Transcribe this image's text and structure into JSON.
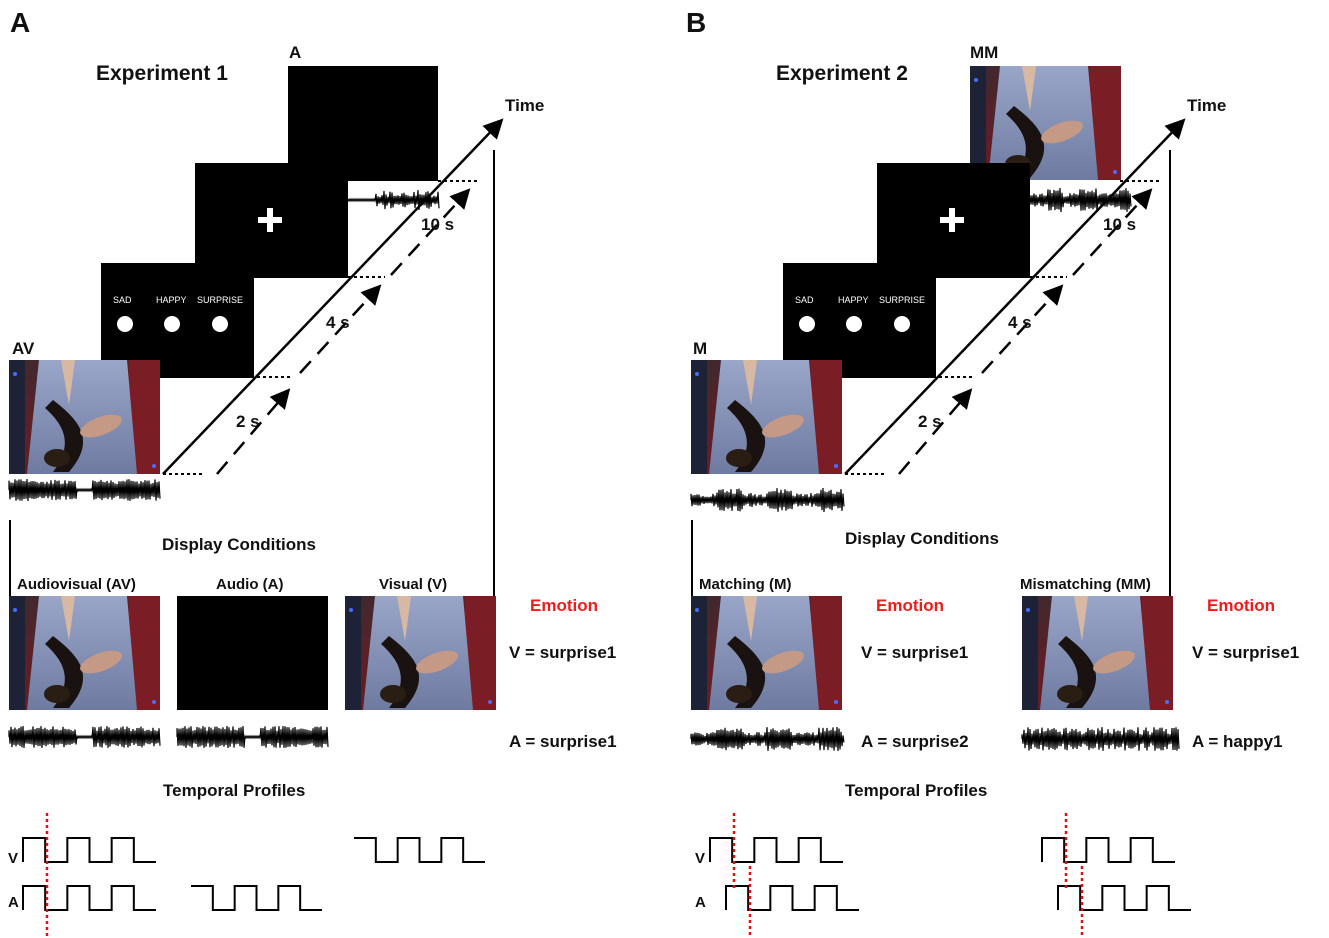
{
  "colors": {
    "emotion_text": "#ee1c1c",
    "screen": "#000000",
    "background": "#ffffff",
    "onset_marker": "#e01010"
  },
  "icon_names": [
    "fixation-cross-icon",
    "rating-dot-icon",
    "waveform-icon",
    "timeline-arrow-icon",
    "square-wave-icon"
  ],
  "panel_a": {
    "letter": "A",
    "experiment_title": "Experiment 1",
    "time_label": "Time",
    "audio_only_label": "A",
    "stimulus_label": "AV",
    "rating_choices": [
      "SAD",
      "HAPPY",
      "SURPRISE"
    ],
    "durations": [
      "2 s",
      "4 s",
      "10 s"
    ],
    "display_conditions_title": "Display Conditions",
    "conditions": [
      "Audiovisual (AV)",
      "Audio (A)",
      "Visual (V)"
    ],
    "emotion_heading": "Emotion",
    "visual_emotion": "V = surprise1",
    "audio_emotion": "A = surprise1",
    "temporal_profiles_title": "Temporal Profiles",
    "profile_labels": [
      "V",
      "A"
    ]
  },
  "panel_b": {
    "letter": "B",
    "experiment_title": "Experiment 2",
    "time_label": "Time",
    "mismatch_label": "MM",
    "stimulus_label": "M",
    "rating_choices": [
      "SAD",
      "HAPPY",
      "SURPRISE"
    ],
    "durations": [
      "2 s",
      "4 s",
      "10 s"
    ],
    "display_conditions_title": "Display Conditions",
    "conditions": [
      "Matching (M)",
      "Mismatching (MM)"
    ],
    "emotion_heading_1": "Emotion",
    "emotion_heading_2": "Emotion",
    "visual_emotion_1": "V = surprise1",
    "audio_emotion_1": "A = surprise2",
    "visual_emotion_2": "V = surprise1",
    "audio_emotion_2": "A = happy1",
    "temporal_profiles_title": "Temporal Profiles",
    "profile_labels": [
      "V",
      "A"
    ]
  }
}
